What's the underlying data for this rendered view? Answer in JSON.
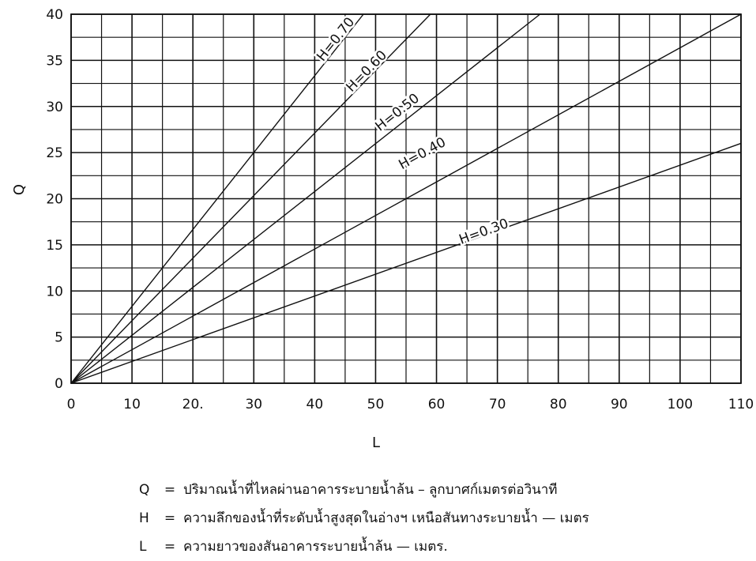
{
  "chart_data": {
    "type": "line",
    "title": "",
    "xlabel": "L",
    "ylabel": "Q",
    "xlim": [
      0,
      110
    ],
    "ylim": [
      0,
      40
    ],
    "x_ticks": [
      "0",
      "10",
      "20.",
      "30",
      "40",
      "50",
      "60",
      "70",
      "80",
      "90",
      "100",
      "110"
    ],
    "y_ticks": [
      "0",
      "5",
      "10",
      "15",
      "20",
      "25",
      "30",
      "35",
      "40"
    ],
    "grid": true,
    "series": [
      {
        "name": "H=0.30",
        "x": [
          0,
          110
        ],
        "y": [
          0,
          26.0
        ]
      },
      {
        "name": "H=0.40",
        "x": [
          0,
          110
        ],
        "y": [
          0,
          40.0
        ]
      },
      {
        "name": "H=0.50",
        "x": [
          0,
          77
        ],
        "y": [
          0,
          40.0
        ]
      },
      {
        "name": "H=0.60",
        "x": [
          0,
          59
        ],
        "y": [
          0,
          40.0
        ]
      },
      {
        "name": "H=0.70",
        "x": [
          0,
          48
        ],
        "y": [
          0,
          40.0
        ]
      }
    ],
    "curve_label_positions": [
      {
        "series": "H=0.30",
        "x": 68,
        "y": 16.0
      },
      {
        "series": "H=0.40",
        "x": 58,
        "y": 24.5
      },
      {
        "series": "H=0.50",
        "x": 54,
        "y": 29.0
      },
      {
        "series": "H=0.60",
        "x": 49,
        "y": 33.5
      },
      {
        "series": "H=0.70",
        "x": 44,
        "y": 37.0
      }
    ]
  },
  "legend": [
    {
      "symbol": "Q",
      "eq": "=",
      "desc": "ปริมาณน้ำที่ไหลผ่านอาคารระบายน้ำล้น – ลูกบาศก์เมตรต่อวินาที"
    },
    {
      "symbol": "H",
      "eq": "=",
      "desc": "ความลึกของน้ำที่ระดับน้ำสูงสุดในอ่างฯ เหนือสันทางระบายน้ำ — เมตร"
    },
    {
      "symbol": "L",
      "eq": "=",
      "desc": "ความยาวของสันอาคารระบายน้ำล้น — เมตร."
    }
  ]
}
